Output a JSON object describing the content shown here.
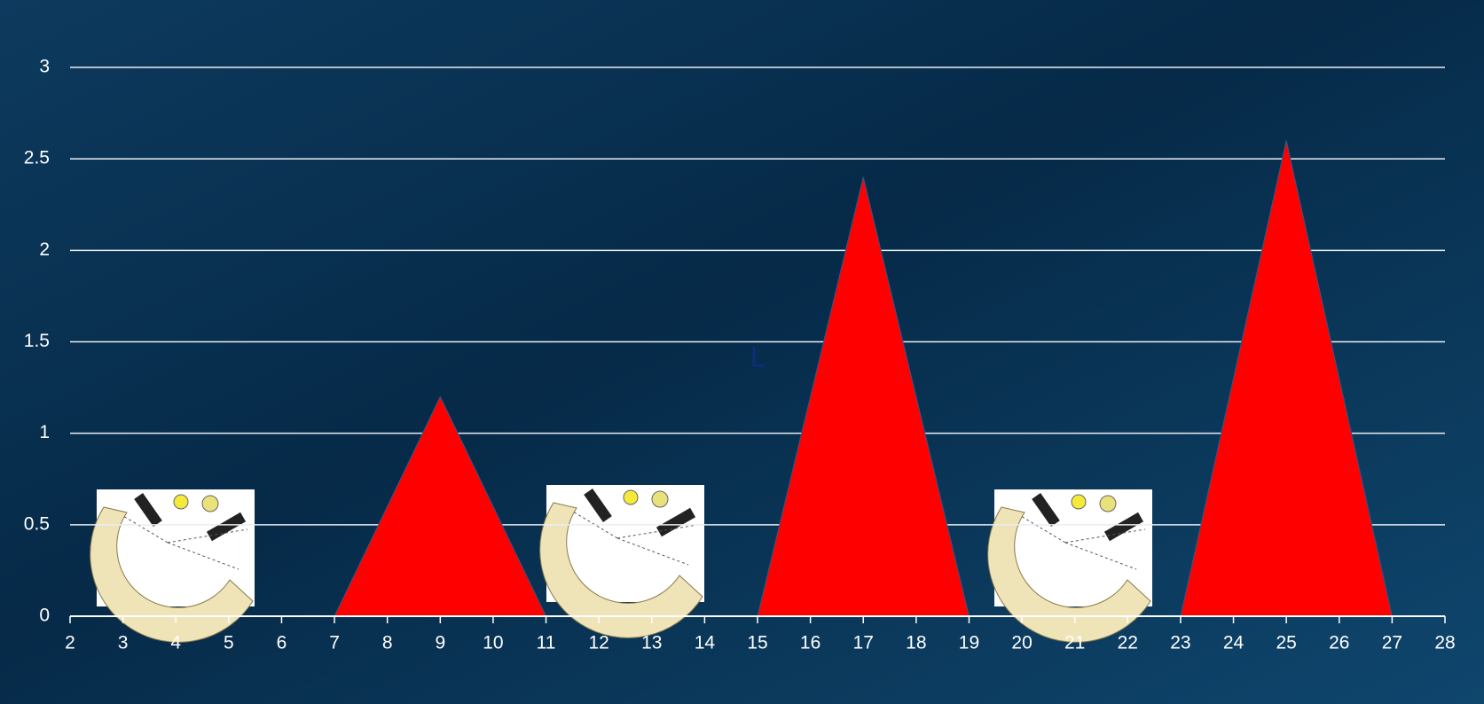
{
  "chart_data": {
    "type": "area",
    "x": [
      7,
      9,
      11,
      15,
      17,
      19,
      23,
      25,
      27
    ],
    "values": [
      0,
      1.2,
      0,
      0,
      2.4,
      0,
      0,
      2.6,
      0
    ],
    "color": "#ff0000",
    "xlim": [
      2,
      28
    ],
    "xticks": [
      2,
      3,
      4,
      5,
      6,
      7,
      8,
      9,
      10,
      11,
      12,
      13,
      14,
      15,
      16,
      17,
      18,
      19,
      20,
      21,
      22,
      23,
      24,
      25,
      26,
      27,
      28
    ],
    "ylim": [
      0,
      3
    ],
    "yticks": [
      0,
      0.5,
      1,
      1.5,
      2,
      2.5,
      3
    ],
    "grid": true,
    "annotation": "L"
  }
}
